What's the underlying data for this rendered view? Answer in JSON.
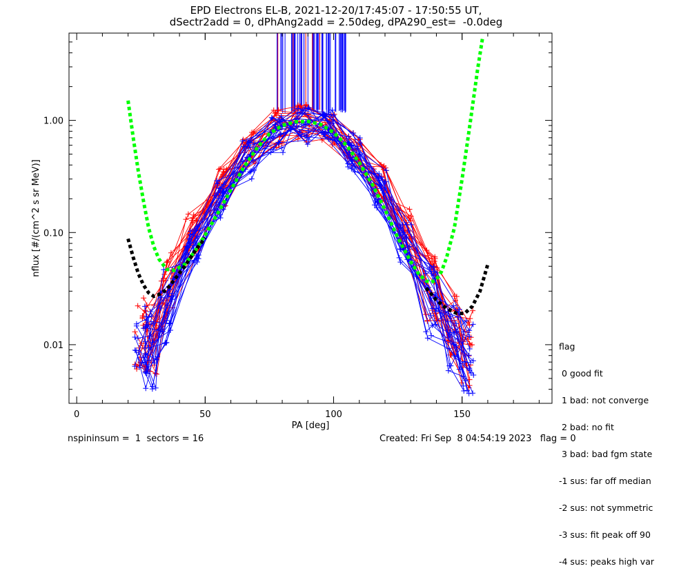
{
  "title_line1": "EPD Electrons EL-B, 2021-12-20/17:45:07 - 17:50:55 UT,",
  "title_line2": "dSectr2add = 0, dPhAng2add = 2.50deg, dPA290_est=  -0.0deg",
  "footer_left": "nspininsum =  1  sectors = 16",
  "footer_right": "Created: Fri Sep  8 04:54:19 2023   flag = 0",
  "legend": {
    "title": "flag",
    "items": [
      " 0 good fit",
      " 1 bad: not converge",
      " 2 bad: no fit",
      " 3 bad: bad fgm state",
      "-1 sus: far off median",
      "-2 sus: not symmetric",
      "-3 sus: fit peak off 90",
      "-4 sus: peaks high var"
    ]
  },
  "colors": {
    "red": "#ff0000",
    "blue": "#0000ff",
    "green": "#00ff00",
    "black": "#000000"
  },
  "chart_data": {
    "type": "line",
    "title": "EPD Electrons EL-B, 2021-12-20/17:45:07 - 17:50:55 UT,",
    "subtitle": "dSectr2add = 0, dPhAng2add = 2.50deg, dPA290_est=  -0.0deg",
    "xlabel": "PA [deg]",
    "ylabel": "nflux [#/(cm^2 s sr MeV)]",
    "xlim": [
      -3,
      185
    ],
    "ylim": [
      0.003,
      6.0
    ],
    "yscale": "log",
    "xticks": [
      0,
      50,
      100,
      150
    ],
    "yticks": [
      0.01,
      0.1,
      1.0
    ],
    "ytick_labels": [
      "0.01",
      "0.10",
      "1.00"
    ],
    "grid": false,
    "legend_position": "bottom-right outside",
    "series": [
      {
        "color": "green",
        "style": "dashed",
        "x": [
          20,
          22,
          24,
          26,
          28,
          30,
          32,
          35,
          38,
          42,
          46,
          50,
          55,
          60,
          65,
          70,
          75,
          80,
          85,
          90,
          95,
          100,
          105,
          110,
          115,
          120,
          125,
          130,
          133,
          136,
          138,
          140,
          142,
          144,
          147,
          150,
          153,
          156,
          158
        ],
        "y": [
          1.5,
          0.7,
          0.35,
          0.19,
          0.11,
          0.075,
          0.058,
          0.047,
          0.046,
          0.052,
          0.068,
          0.095,
          0.15,
          0.24,
          0.38,
          0.56,
          0.76,
          0.9,
          0.97,
          0.98,
          0.92,
          0.78,
          0.6,
          0.42,
          0.27,
          0.16,
          0.09,
          0.055,
          0.043,
          0.037,
          0.036,
          0.038,
          0.045,
          0.06,
          0.11,
          0.3,
          0.9,
          2.8,
          5.5
        ]
      },
      {
        "color": "black",
        "style": "dashed",
        "x": [
          20,
          22,
          24,
          26,
          28,
          30,
          32,
          35,
          38,
          42,
          46,
          50,
          136,
          140,
          144,
          148,
          151,
          154,
          157,
          160
        ],
        "y": [
          0.088,
          0.06,
          0.043,
          0.034,
          0.029,
          0.027,
          0.028,
          0.031,
          0.038,
          0.05,
          0.068,
          0.09,
          0.032,
          0.025,
          0.021,
          0.019,
          0.019,
          0.022,
          0.03,
          0.052
        ]
      },
      {
        "color": "red",
        "style": "solid+markers",
        "x": [
          25,
          29,
          35,
          45,
          56,
          67,
          78,
          88,
          98,
          108,
          118,
          128,
          138,
          147,
          152
        ],
        "y": [
          0.012,
          0.012,
          0.03,
          0.1,
          0.25,
          0.55,
          0.85,
          0.95,
          0.9,
          0.58,
          0.28,
          0.11,
          0.035,
          0.015,
          0.009
        ]
      },
      {
        "color": "blue",
        "style": "solid+markers",
        "x": [
          25,
          29,
          35,
          45,
          56,
          67,
          78,
          88,
          98,
          108,
          118,
          128,
          138,
          147,
          152
        ],
        "y": [
          0.01,
          0.009,
          0.022,
          0.08,
          0.2,
          0.45,
          0.75,
          0.88,
          0.86,
          0.52,
          0.24,
          0.08,
          0.025,
          0.011,
          0.008
        ]
      }
    ]
  }
}
